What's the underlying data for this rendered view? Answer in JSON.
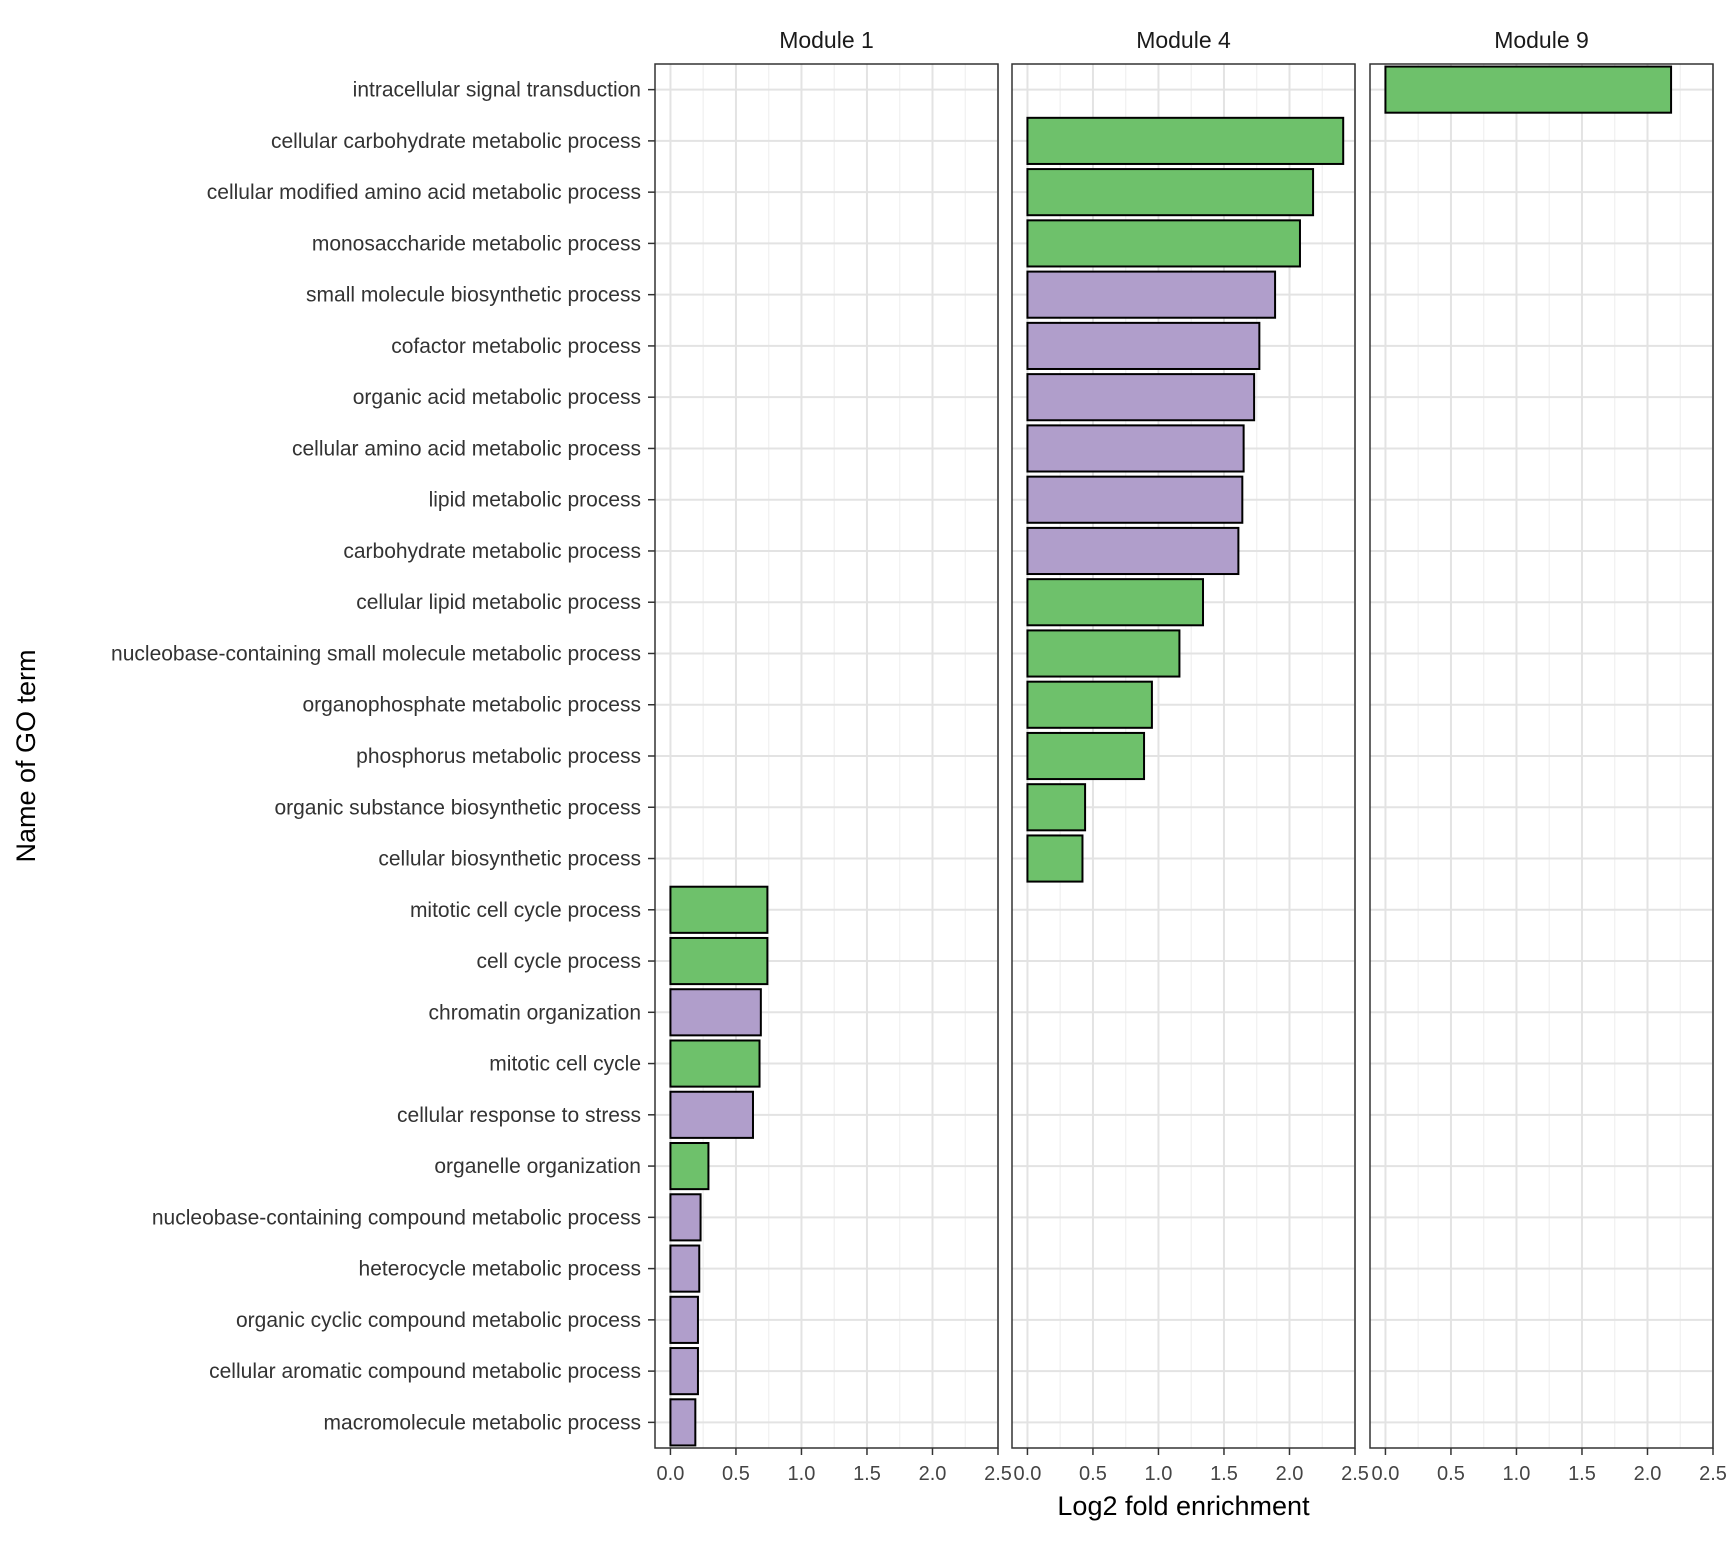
{
  "chart_data": {
    "type": "bar",
    "orientation": "horizontal",
    "xlabel": "Log2 fold enrichment",
    "ylabel": "Name of GO term",
    "xlim": [
      0,
      2.5
    ],
    "xticks": [
      "0.0",
      "0.5",
      "1.0",
      "1.5",
      "2.0",
      "2.5"
    ],
    "grid": true,
    "colors": {
      "green": "#6ec16b",
      "purple": "#b09ecb",
      "outline": "#000000"
    },
    "categories": [
      "intracellular signal transduction",
      "cellular carbohydrate metabolic process",
      "cellular modified amino acid metabolic process",
      "monosaccharide metabolic process",
      "small molecule biosynthetic process",
      "cofactor metabolic process",
      "organic acid metabolic process",
      "cellular amino acid metabolic process",
      "lipid metabolic process",
      "carbohydrate metabolic process",
      "cellular lipid metabolic process",
      "nucleobase-containing small molecule metabolic process",
      "organophosphate metabolic process",
      "phosphorus metabolic process",
      "organic substance biosynthetic process",
      "cellular biosynthetic process",
      "mitotic cell cycle process",
      "cell cycle process",
      "chromatin organization",
      "mitotic cell cycle",
      "cellular response to stress",
      "organelle organization",
      "nucleobase-containing compound metabolic process",
      "heterocycle metabolic process",
      "organic cyclic compound metabolic process",
      "cellular aromatic compound metabolic process",
      "macromolecule metabolic process"
    ],
    "panels": [
      {
        "name": "Module 1",
        "bars": [
          {
            "term": "mitotic cell cycle process",
            "value": 0.74,
            "color": "green"
          },
          {
            "term": "cell cycle process",
            "value": 0.74,
            "color": "green"
          },
          {
            "term": "chromatin organization",
            "value": 0.69,
            "color": "purple"
          },
          {
            "term": "mitotic cell cycle",
            "value": 0.68,
            "color": "green"
          },
          {
            "term": "cellular response to stress",
            "value": 0.63,
            "color": "purple"
          },
          {
            "term": "organelle organization",
            "value": 0.29,
            "color": "green"
          },
          {
            "term": "nucleobase-containing compound metabolic process",
            "value": 0.23,
            "color": "purple"
          },
          {
            "term": "heterocycle metabolic process",
            "value": 0.22,
            "color": "purple"
          },
          {
            "term": "organic cyclic compound metabolic process",
            "value": 0.21,
            "color": "purple"
          },
          {
            "term": "cellular aromatic compound metabolic process",
            "value": 0.21,
            "color": "purple"
          },
          {
            "term": "macromolecule metabolic process",
            "value": 0.19,
            "color": "purple"
          }
        ]
      },
      {
        "name": "Module 4",
        "bars": [
          {
            "term": "cellular carbohydrate metabolic process",
            "value": 2.41,
            "color": "green"
          },
          {
            "term": "cellular modified amino acid metabolic process",
            "value": 2.18,
            "color": "green"
          },
          {
            "term": "monosaccharide metabolic process",
            "value": 2.08,
            "color": "green"
          },
          {
            "term": "small molecule biosynthetic process",
            "value": 1.89,
            "color": "purple"
          },
          {
            "term": "cofactor metabolic process",
            "value": 1.77,
            "color": "purple"
          },
          {
            "term": "organic acid metabolic process",
            "value": 1.73,
            "color": "purple"
          },
          {
            "term": "cellular amino acid metabolic process",
            "value": 1.65,
            "color": "purple"
          },
          {
            "term": "lipid metabolic process",
            "value": 1.64,
            "color": "purple"
          },
          {
            "term": "carbohydrate metabolic process",
            "value": 1.61,
            "color": "purple"
          },
          {
            "term": "cellular lipid metabolic process",
            "value": 1.34,
            "color": "green"
          },
          {
            "term": "nucleobase-containing small molecule metabolic process",
            "value": 1.16,
            "color": "green"
          },
          {
            "term": "organophosphate metabolic process",
            "value": 0.95,
            "color": "green"
          },
          {
            "term": "phosphorus metabolic process",
            "value": 0.89,
            "color": "green"
          },
          {
            "term": "organic substance biosynthetic process",
            "value": 0.44,
            "color": "green"
          },
          {
            "term": "cellular biosynthetic process",
            "value": 0.42,
            "color": "green"
          }
        ]
      },
      {
        "name": "Module 9",
        "bars": [
          {
            "term": "intracellular signal transduction",
            "value": 2.18,
            "color": "green"
          }
        ]
      }
    ]
  }
}
